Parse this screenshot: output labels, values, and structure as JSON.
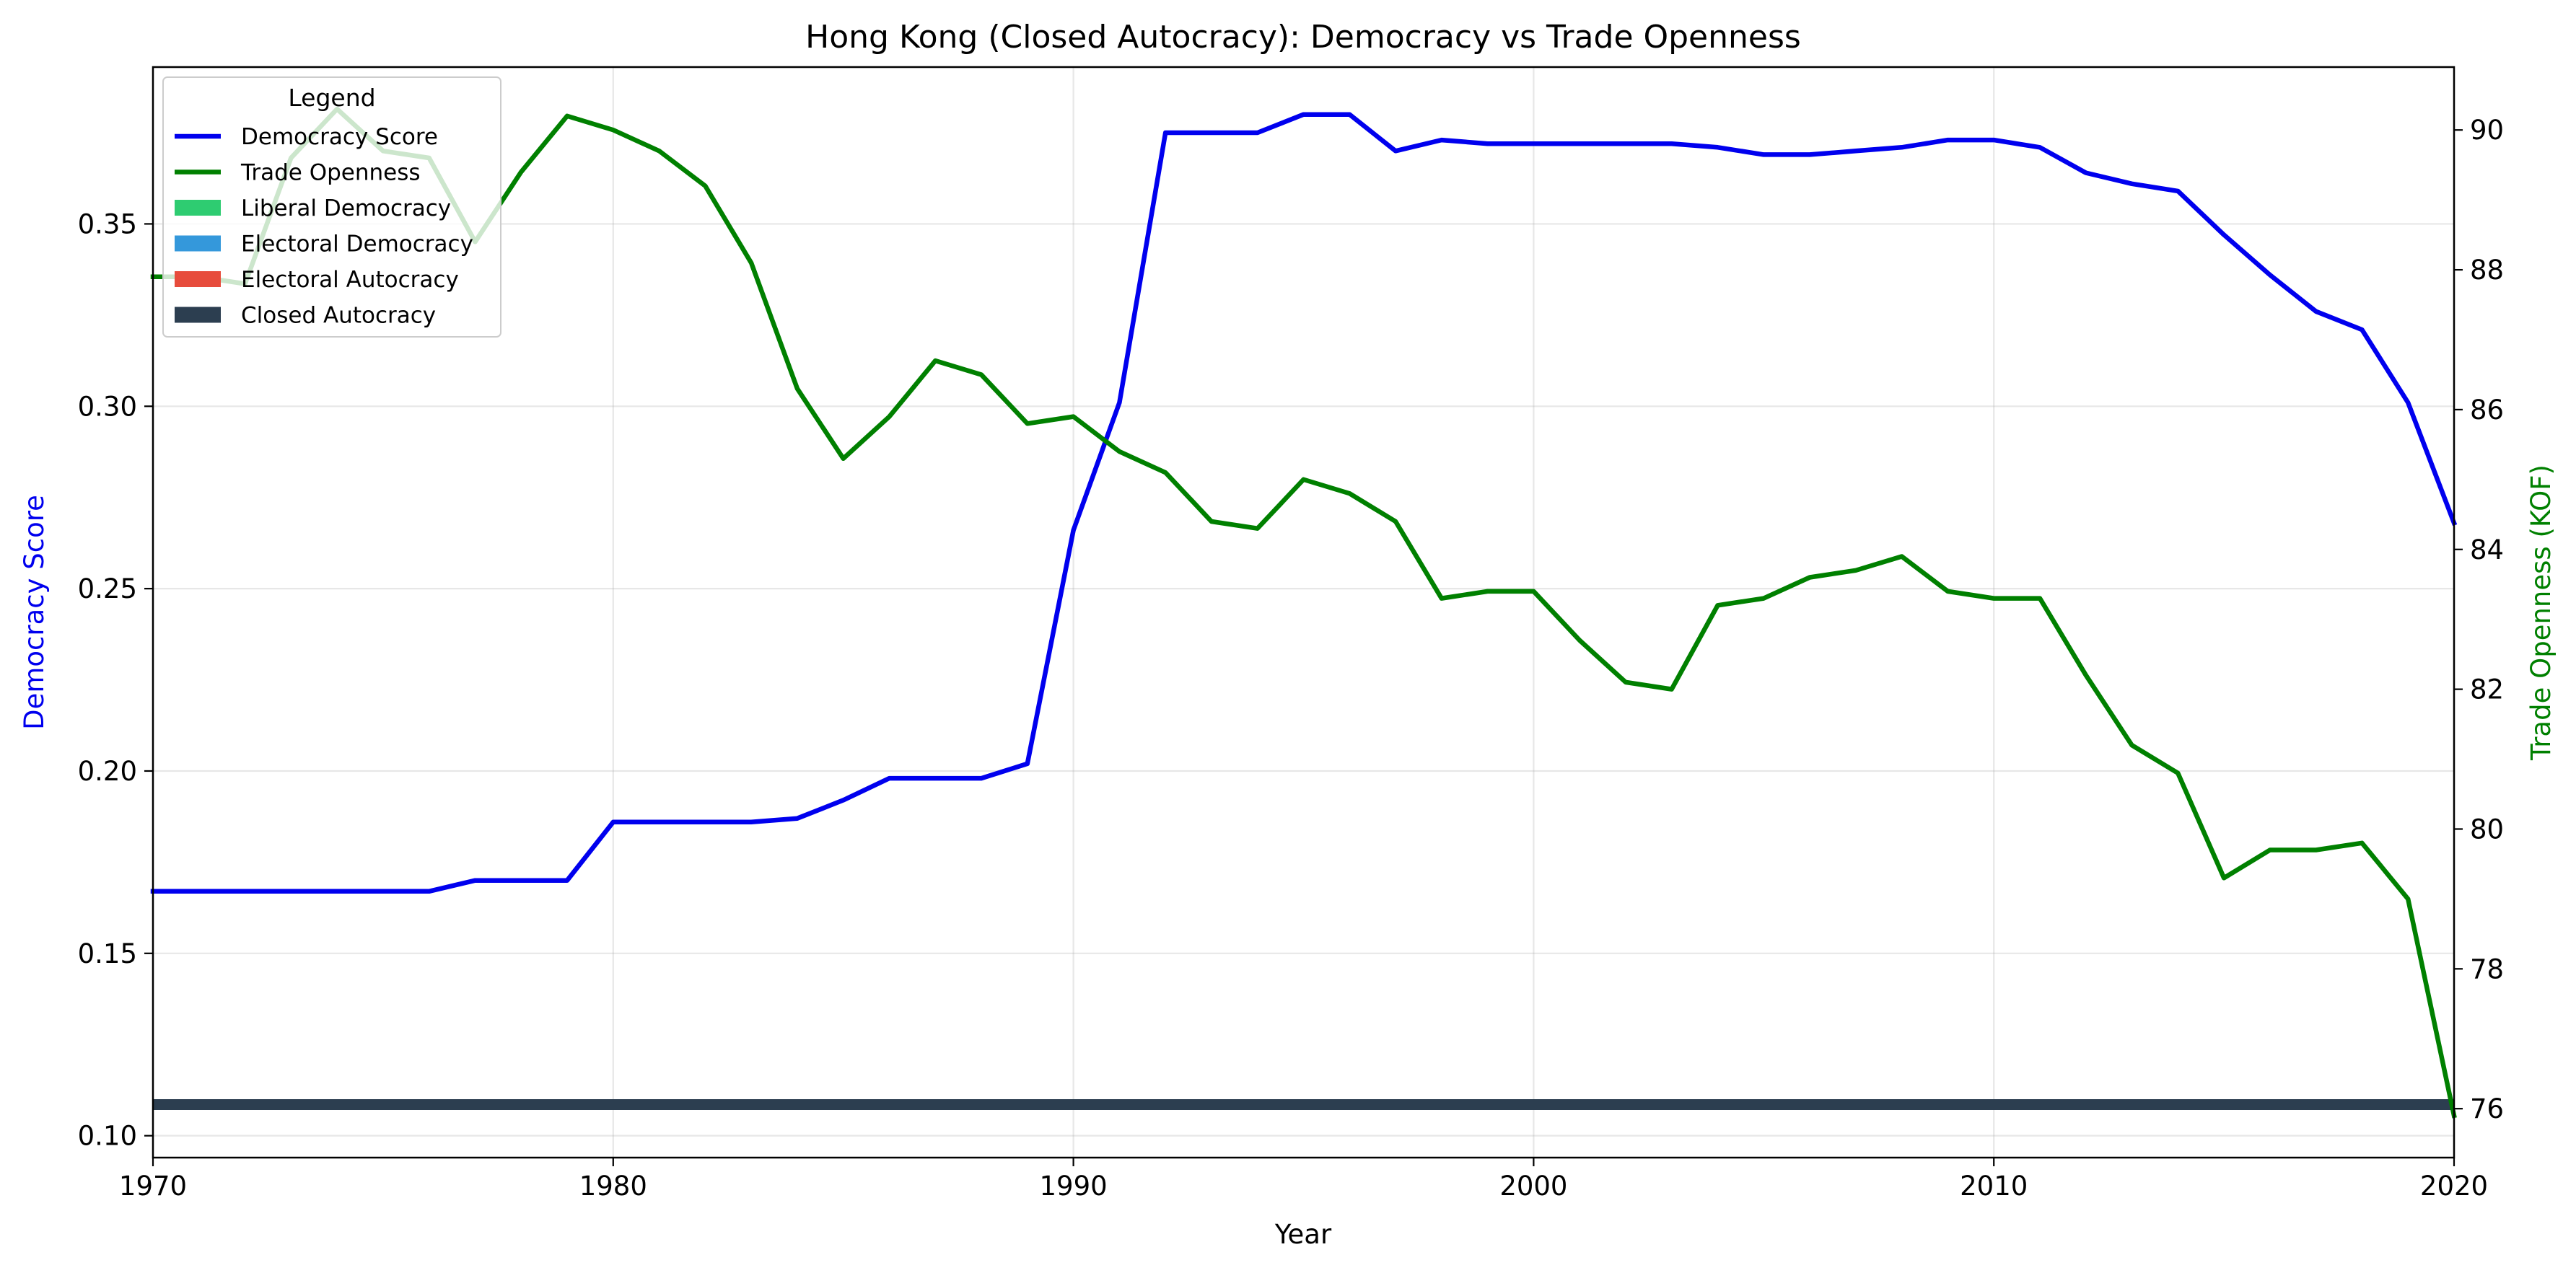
{
  "chart_data": {
    "type": "line",
    "title": "Hong Kong (Closed Autocracy): Democracy vs Trade Openness",
    "xlabel": "Year",
    "ylabel_left": "Democracy Score",
    "ylabel_right": "Trade Openness (KOF)",
    "xlim": [
      1970,
      2020
    ],
    "ylim_left": [
      0.094,
      0.393
    ],
    "ylim_right": [
      75.3,
      90.9
    ],
    "x_ticks": [
      1970,
      1980,
      1990,
      2000,
      2010,
      2020
    ],
    "y_ticks_left": [
      "0.10",
      "0.15",
      "0.20",
      "0.25",
      "0.30",
      "0.35"
    ],
    "y_ticks_right": [
      "76",
      "78",
      "80",
      "82",
      "84",
      "86",
      "88",
      "90"
    ],
    "grid": true,
    "legend_placement": "top-left",
    "legend_title": "Legend",
    "legend": [
      {
        "label": "Democracy Score",
        "kind": "line",
        "color": "#0000ee"
      },
      {
        "label": "Trade Openness",
        "kind": "line",
        "color": "#008000"
      },
      {
        "label": "Liberal Democracy",
        "kind": "patch",
        "color": "#2ecc71"
      },
      {
        "label": "Electoral Democracy",
        "kind": "patch",
        "color": "#3498db"
      },
      {
        "label": "Electoral Autocracy",
        "kind": "patch",
        "color": "#e74c3c"
      },
      {
        "label": "Closed Autocracy",
        "kind": "patch",
        "color": "#2c3e50"
      }
    ],
    "regime_band": {
      "label": "Closed Autocracy",
      "from": 1970,
      "to": 2020,
      "color": "#2c3e50"
    },
    "series": [
      {
        "name": "Democracy Score",
        "axis": "left",
        "color": "#0000ee",
        "x": [
          1970,
          1971,
          1972,
          1973,
          1974,
          1975,
          1976,
          1977,
          1978,
          1979,
          1980,
          1981,
          1982,
          1983,
          1984,
          1985,
          1986,
          1987,
          1988,
          1989,
          1990,
          1991,
          1992,
          1993,
          1994,
          1995,
          1996,
          1997,
          1998,
          1999,
          2000,
          2001,
          2002,
          2003,
          2004,
          2005,
          2006,
          2007,
          2008,
          2009,
          2010,
          2011,
          2012,
          2013,
          2014,
          2015,
          2016,
          2017,
          2018,
          2019,
          2020
        ],
        "values": [
          0.167,
          0.167,
          0.167,
          0.167,
          0.167,
          0.167,
          0.167,
          0.17,
          0.17,
          0.17,
          0.186,
          0.186,
          0.186,
          0.186,
          0.187,
          0.192,
          0.198,
          0.198,
          0.198,
          0.202,
          0.266,
          0.301,
          0.375,
          0.375,
          0.375,
          0.38,
          0.38,
          0.37,
          0.373,
          0.372,
          0.372,
          0.372,
          0.372,
          0.372,
          0.371,
          0.369,
          0.369,
          0.37,
          0.371,
          0.373,
          0.373,
          0.371,
          0.364,
          0.361,
          0.359,
          0.347,
          0.336,
          0.326,
          0.321,
          0.301,
          0.268
        ]
      },
      {
        "name": "Trade Openness",
        "axis": "right",
        "color": "#008000",
        "x": [
          1970,
          1971,
          1972,
          1973,
          1974,
          1975,
          1976,
          1977,
          1978,
          1979,
          1980,
          1981,
          1982,
          1983,
          1984,
          1985,
          1986,
          1987,
          1988,
          1989,
          1990,
          1991,
          1992,
          1993,
          1994,
          1995,
          1996,
          1997,
          1998,
          1999,
          2000,
          2001,
          2002,
          2003,
          2004,
          2005,
          2006,
          2007,
          2008,
          2009,
          2010,
          2011,
          2012,
          2013,
          2014,
          2015,
          2016,
          2017,
          2018,
          2019,
          2020
        ],
        "values": [
          87.9,
          87.9,
          87.8,
          89.6,
          90.3,
          89.7,
          89.6,
          88.4,
          89.4,
          90.2,
          90.0,
          89.7,
          89.2,
          88.1,
          86.3,
          85.3,
          85.9,
          86.7,
          86.5,
          85.8,
          85.9,
          85.4,
          85.1,
          84.4,
          84.3,
          85.0,
          84.8,
          84.4,
          83.3,
          83.4,
          83.4,
          82.7,
          82.1,
          82.0,
          83.2,
          83.3,
          83.6,
          83.7,
          83.9,
          83.4,
          83.3,
          83.3,
          82.2,
          81.2,
          80.8,
          79.3,
          79.7,
          79.7,
          79.8,
          79.0,
          75.9
        ]
      }
    ]
  }
}
